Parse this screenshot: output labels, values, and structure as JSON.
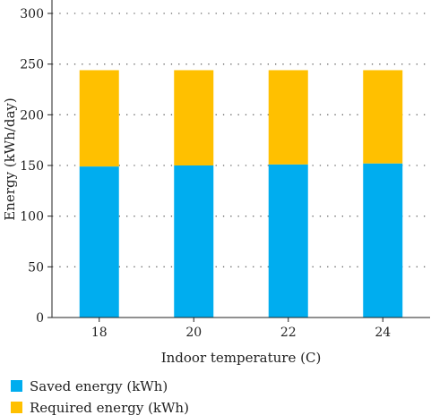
{
  "chart_data": {
    "type": "bar",
    "stacked": true,
    "categories": [
      "18",
      "20",
      "22",
      "24"
    ],
    "series": [
      {
        "name": "Saved energy (kWh)",
        "values": [
          149,
          150,
          151,
          152
        ],
        "color": "#00adef"
      },
      {
        "name": "Required energy (kWh)",
        "values": [
          95,
          94,
          93,
          92
        ],
        "color": "#ffc000"
      }
    ],
    "xlabel": "Indoor temperature (C)",
    "ylabel": "Energy (kWh/day)",
    "ylim": [
      0,
      300
    ],
    "yticks": [
      0,
      50,
      100,
      150,
      200,
      250,
      300
    ],
    "grid": "horizontal-dotted",
    "legend_position": "bottom-left"
  }
}
